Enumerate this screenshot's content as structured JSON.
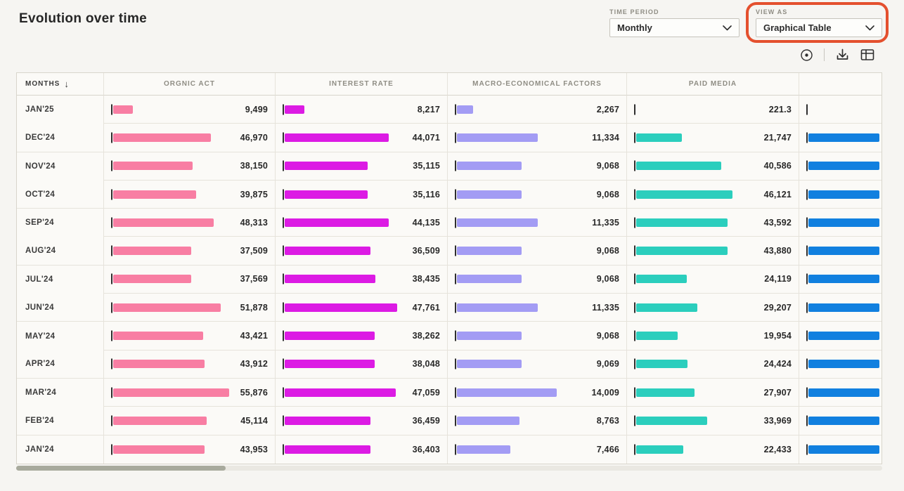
{
  "header": {
    "title": "Evolution over time"
  },
  "controls": {
    "time_period": {
      "label": "TIME PERIOD",
      "value": "Monthly"
    },
    "view_as": {
      "label": "VIEW AS",
      "value": "Graphical Table"
    },
    "highlight_color": "#E4502E"
  },
  "toolbar": {
    "icons": [
      "target-icon",
      "download-icon",
      "table-icon"
    ]
  },
  "table": {
    "columns": [
      {
        "key": "month",
        "label": "MONTHS",
        "sort_indicator": "↓"
      },
      {
        "key": "organic",
        "label": "ORGNIC ACT",
        "color": "#F87EA3"
      },
      {
        "key": "interest",
        "label": "INTEREST RATE",
        "color": "#DC1BE4"
      },
      {
        "key": "macro",
        "label": "MACRO-ECONOMICAL FACTORS",
        "color": "#A39CF4"
      },
      {
        "key": "paid",
        "label": "PAID MEDIA",
        "color": "#2BCEBD"
      },
      {
        "key": "extra",
        "label": "",
        "color": "#1180DF",
        "clipped": true
      }
    ],
    "rows": [
      {
        "month": "JAN'25",
        "organic": "9,499",
        "interest": "8,217",
        "macro": "2,267",
        "paid": "221.3",
        "extra_bar": 0
      },
      {
        "month": "DEC'24",
        "organic": "46,970",
        "interest": "44,071",
        "macro": "11,334",
        "paid": "21,747",
        "extra_bar": 1
      },
      {
        "month": "NOV'24",
        "organic": "38,150",
        "interest": "35,115",
        "macro": "9,068",
        "paid": "40,586",
        "extra_bar": 1
      },
      {
        "month": "OCT'24",
        "organic": "39,875",
        "interest": "35,116",
        "macro": "9,068",
        "paid": "46,121",
        "extra_bar": 1
      },
      {
        "month": "SEP'24",
        "organic": "48,313",
        "interest": "44,135",
        "macro": "11,335",
        "paid": "43,592",
        "extra_bar": 1
      },
      {
        "month": "AUG'24",
        "organic": "37,509",
        "interest": "36,509",
        "macro": "9,068",
        "paid": "43,880",
        "extra_bar": 1
      },
      {
        "month": "JUL'24",
        "organic": "37,569",
        "interest": "38,435",
        "macro": "9,068",
        "paid": "24,119",
        "extra_bar": 1
      },
      {
        "month": "JUN'24",
        "organic": "51,878",
        "interest": "47,761",
        "macro": "11,335",
        "paid": "29,207",
        "extra_bar": 1
      },
      {
        "month": "MAY'24",
        "organic": "43,421",
        "interest": "38,262",
        "macro": "9,068",
        "paid": "19,954",
        "extra_bar": 1
      },
      {
        "month": "APR'24",
        "organic": "43,912",
        "interest": "38,048",
        "macro": "9,069",
        "paid": "24,424",
        "extra_bar": 1
      },
      {
        "month": "MAR'24",
        "organic": "55,876",
        "interest": "47,059",
        "macro": "14,009",
        "paid": "27,907",
        "extra_bar": 1
      },
      {
        "month": "FEB'24",
        "organic": "45,114",
        "interest": "36,459",
        "macro": "8,763",
        "paid": "33,969",
        "extra_bar": 1
      },
      {
        "month": "JAN'24",
        "organic": "43,953",
        "interest": "36,403",
        "macro": "7,466",
        "paid": "22,433",
        "extra_bar": 1
      }
    ]
  },
  "chart_data": {
    "type": "bar",
    "orientation": "horizontal",
    "title": "Evolution over time",
    "categories": [
      "JAN'25",
      "DEC'24",
      "NOV'24",
      "OCT'24",
      "SEP'24",
      "AUG'24",
      "JUL'24",
      "JUN'24",
      "MAY'24",
      "APR'24",
      "MAR'24",
      "FEB'24",
      "JAN'24"
    ],
    "series": [
      {
        "name": "ORGNIC ACT",
        "color": "#F87EA3",
        "values": [
          9499,
          46970,
          38150,
          39875,
          48313,
          37509,
          37569,
          51878,
          43421,
          43912,
          55876,
          45114,
          43953
        ]
      },
      {
        "name": "INTEREST RATE",
        "color": "#DC1BE4",
        "values": [
          8217,
          44071,
          35115,
          35116,
          44135,
          36509,
          38435,
          47761,
          38262,
          38048,
          47059,
          36459,
          36403
        ]
      },
      {
        "name": "MACRO-ECONOMICAL FACTORS",
        "color": "#A39CF4",
        "values": [
          2267,
          11334,
          9068,
          9068,
          11335,
          9068,
          9068,
          11335,
          9068,
          9069,
          14009,
          8763,
          7466
        ]
      },
      {
        "name": "PAID MEDIA",
        "color": "#2BCEBD",
        "values": [
          221.3,
          21747,
          40586,
          46121,
          43592,
          43880,
          24119,
          29207,
          19954,
          24424,
          27907,
          33969,
          22433
        ]
      }
    ],
    "legend_position": "column-headers",
    "grid": false
  }
}
